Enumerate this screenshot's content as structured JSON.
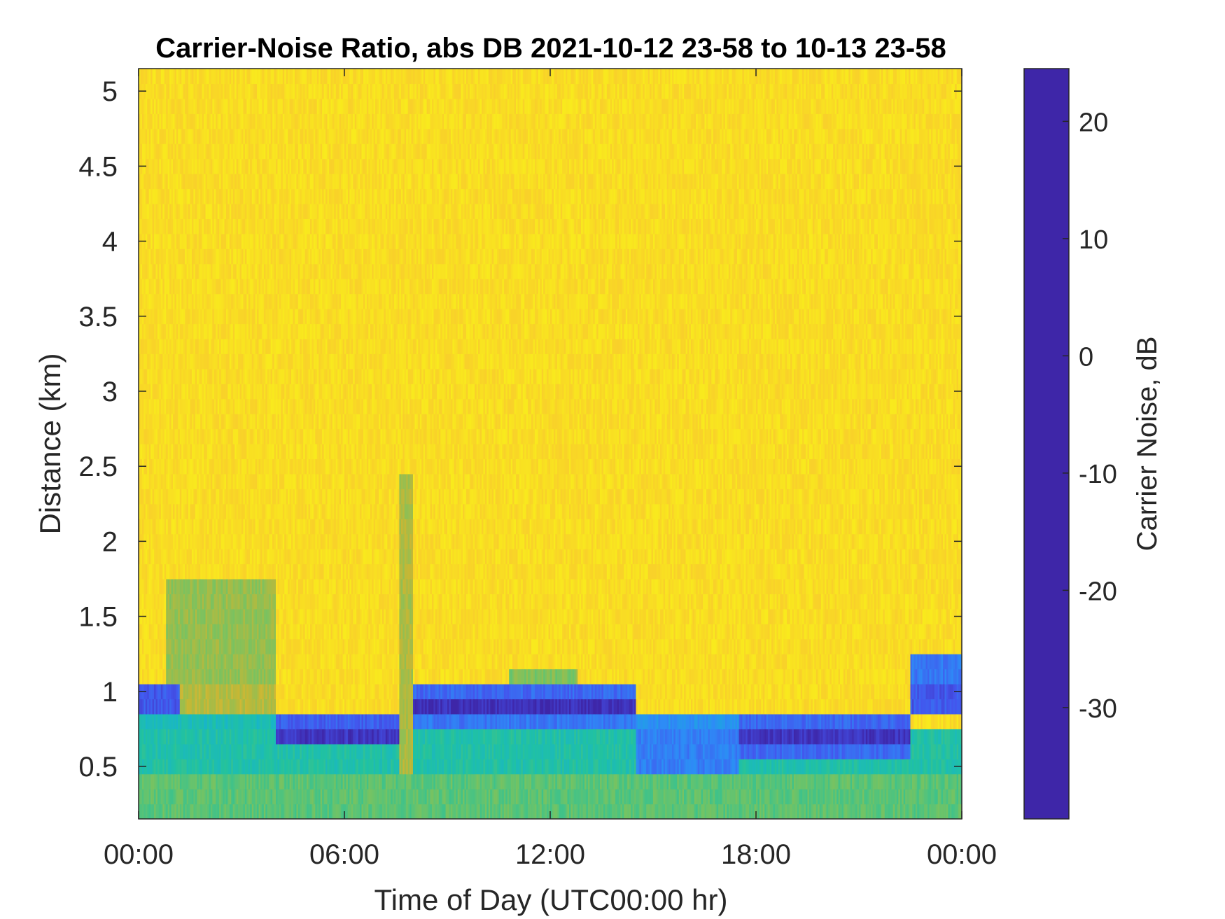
{
  "chart_data": {
    "type": "heatmap",
    "title": "Carrier-Noise Ratio, abs DB 2021-10-12 23-58 to 10-13 23-58",
    "xlabel": "Time of Day (UTC00:00 hr)",
    "ylabel": "Distance (km)",
    "colorbar_label": "Carrier Noise, dB",
    "colormap": "parula",
    "colormap_stops": [
      "#3e26a8",
      "#4355ed",
      "#2d8cf6",
      "#16b1d6",
      "#21c2a0",
      "#73c364",
      "#c5b735",
      "#fdbd3c",
      "#f9d328",
      "#f9fb15"
    ],
    "xlim_hours": [
      0,
      24
    ],
    "ylim_km": [
      0.15,
      5.15
    ],
    "clim_db": [
      -39.5,
      24.5
    ],
    "x_ticks": [
      {
        "hour": 0,
        "label": "00:00"
      },
      {
        "hour": 6,
        "label": "06:00"
      },
      {
        "hour": 12,
        "label": "12:00"
      },
      {
        "hour": 18,
        "label": "18:00"
      },
      {
        "hour": 24,
        "label": "00:00"
      }
    ],
    "y_ticks": [
      {
        "value": 0.5,
        "label": "0.5"
      },
      {
        "value": 1,
        "label": "1"
      },
      {
        "value": 1.5,
        "label": "1.5"
      },
      {
        "value": 2,
        "label": "2"
      },
      {
        "value": 2.5,
        "label": "2.5"
      },
      {
        "value": 3,
        "label": "3"
      },
      {
        "value": 3.5,
        "label": "3.5"
      },
      {
        "value": 4,
        "label": "4"
      },
      {
        "value": 4.5,
        "label": "4.5"
      },
      {
        "value": 5,
        "label": "5"
      }
    ],
    "colorbar_ticks": [
      {
        "value": 20,
        "label": "20"
      },
      {
        "value": 10,
        "label": "10"
      },
      {
        "value": 0,
        "label": "0"
      },
      {
        "value": -10,
        "label": "-10"
      },
      {
        "value": -20,
        "label": "-20"
      },
      {
        "value": -30,
        "label": "-30"
      }
    ],
    "grid": false,
    "background_db": -34,
    "regions": [
      {
        "t0": 0.0,
        "t1": 24.0,
        "d0": 0.15,
        "d1": 0.45,
        "db": -9
      },
      {
        "t0": 0.0,
        "t1": 24.0,
        "d0": 0.45,
        "d1": 0.75,
        "db": -3
      },
      {
        "t0": 0.0,
        "t1": 4.0,
        "d0": 0.75,
        "d1": 0.85,
        "db": -1
      },
      {
        "t0": 0.0,
        "t1": 1.2,
        "d0": 0.85,
        "d1": 1.05,
        "db": 17
      },
      {
        "t0": 0.8,
        "t1": 4.0,
        "d0": 1.05,
        "d1": 1.75,
        "db": -14
      },
      {
        "t0": 1.2,
        "t1": 4.0,
        "d0": 0.85,
        "d1": 1.05,
        "db": -17
      },
      {
        "t0": 4.0,
        "t1": 8.0,
        "d0": 0.65,
        "d1": 0.75,
        "db": 22
      },
      {
        "t0": 4.0,
        "t1": 8.0,
        "d0": 0.75,
        "d1": 0.85,
        "db": 16
      },
      {
        "t0": 7.6,
        "t1": 8.0,
        "d0": 0.45,
        "d1": 2.45,
        "db": -16
      },
      {
        "t0": 8.0,
        "t1": 14.5,
        "d0": 0.75,
        "d1": 0.85,
        "db": 13
      },
      {
        "t0": 8.0,
        "t1": 14.5,
        "d0": 0.85,
        "d1": 0.95,
        "db": 23
      },
      {
        "t0": 8.0,
        "t1": 14.5,
        "d0": 0.95,
        "d1": 1.05,
        "db": 15
      },
      {
        "t0": 10.8,
        "t1": 12.8,
        "d0": 1.05,
        "d1": 1.15,
        "db": -12
      },
      {
        "t0": 14.5,
        "t1": 17.5,
        "d0": 0.45,
        "d1": 0.75,
        "db": 12
      },
      {
        "t0": 14.5,
        "t1": 17.5,
        "d0": 0.75,
        "d1": 0.85,
        "db": 9
      },
      {
        "t0": 17.5,
        "t1": 22.5,
        "d0": 0.55,
        "d1": 0.65,
        "db": 15
      },
      {
        "t0": 17.5,
        "t1": 22.5,
        "d0": 0.65,
        "d1": 0.75,
        "db": 22
      },
      {
        "t0": 17.5,
        "t1": 22.5,
        "d0": 0.75,
        "d1": 0.85,
        "db": 15
      },
      {
        "t0": 22.5,
        "t1": 24.0,
        "d0": 0.85,
        "d1": 1.05,
        "db": 17
      },
      {
        "t0": 22.5,
        "t1": 24.0,
        "d0": 1.05,
        "d1": 1.25,
        "db": 13
      }
    ]
  }
}
